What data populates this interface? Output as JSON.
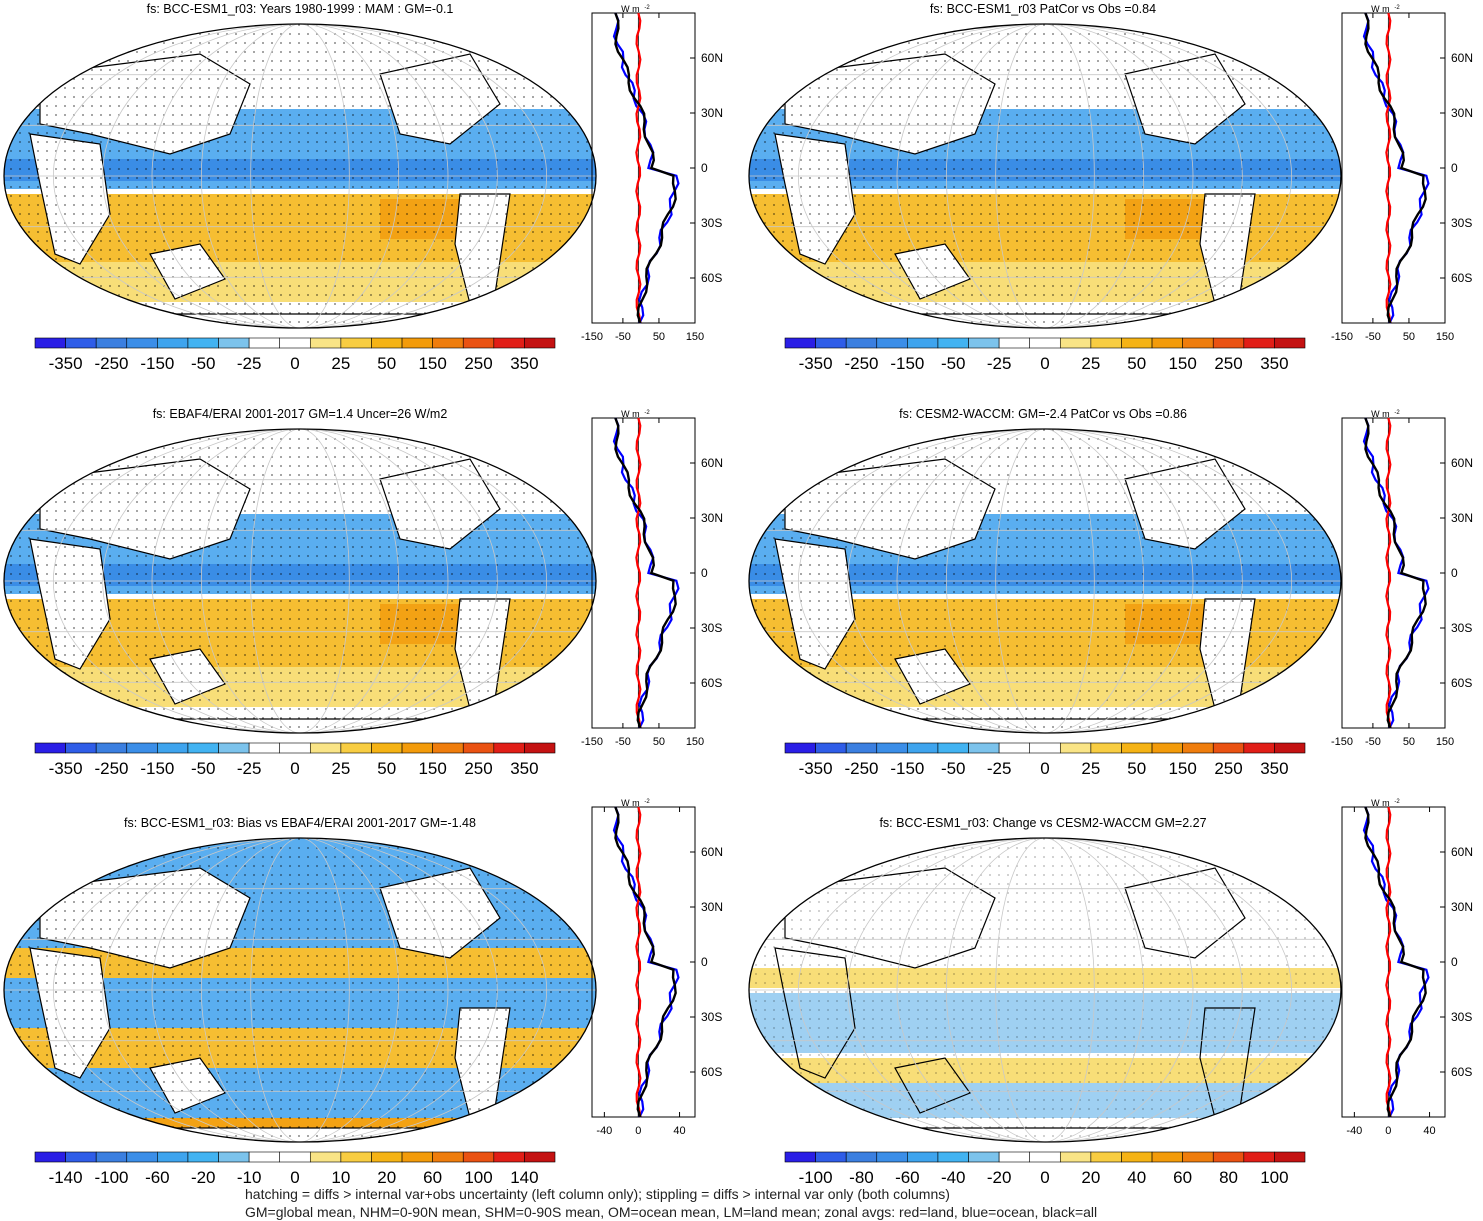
{
  "cbar_colors": [
    "#2a1ee6",
    "#2f5de8",
    "#3b7fe0",
    "#3b8ee8",
    "#3ea4ee",
    "#42b3f2",
    "#7cc3ec",
    "#ffffff",
    "#ffffff",
    "#f9e486",
    "#f8cd42",
    "#f5b315",
    "#f39b0a",
    "#ef7d0d",
    "#ea5212",
    "#e11e17",
    "#c41212"
  ],
  "map_palette": {
    "blue_strong": "#3a8de6",
    "blue_mid": "#5aaef0",
    "blue_light": "#9fd0f2",
    "orange_strong": "#f3a214",
    "orange_mid": "#f6be32",
    "yellow": "#f8de78",
    "white": "#ffffff"
  },
  "profile_colors": {
    "land": "#ff0000",
    "ocean": "#0000ff",
    "all": "#000000"
  },
  "profile_unit": "W m",
  "profile_unit_exp": "-2",
  "lat_labels": [
    "60N",
    "30N",
    "0",
    "30S",
    "60S"
  ],
  "panels": [
    {
      "id": "p1",
      "title": "fs: BCC-ESM1_r03: Years 1980-1999 : MAM : GM=-0.1",
      "cbar_labels": [
        "-350",
        "-250",
        "-150",
        "-50",
        "-25",
        "0",
        "25",
        "50",
        "150",
        "250",
        "350"
      ],
      "profile_ticks": [
        "-150",
        "-50",
        "50",
        "150"
      ],
      "pattern": "a"
    },
    {
      "id": "p2",
      "title": "fs: BCC-ESM1_r03 PatCor vs Obs =0.84",
      "cbar_labels": [
        "-350",
        "-250",
        "-150",
        "-50",
        "-25",
        "0",
        "25",
        "50",
        "150",
        "250",
        "350"
      ],
      "profile_ticks": [
        "-150",
        "-50",
        "50",
        "150"
      ],
      "pattern": "a"
    },
    {
      "id": "p3",
      "title": "fs: EBAF4/ERAI 2001-2017 GM=1.4 Uncer=26 W/m2",
      "cbar_labels": [
        "-350",
        "-250",
        "-150",
        "-50",
        "-25",
        "0",
        "25",
        "50",
        "150",
        "250",
        "350"
      ],
      "profile_ticks": [
        "-150",
        "-50",
        "50",
        "150"
      ],
      "pattern": "a"
    },
    {
      "id": "p4",
      "title": "fs: CESM2-WACCM: GM=-2.4 PatCor vs Obs =0.86",
      "cbar_labels": [
        "-350",
        "-250",
        "-150",
        "-50",
        "-25",
        "0",
        "25",
        "50",
        "150",
        "250",
        "350"
      ],
      "profile_ticks": [
        "-150",
        "-50",
        "50",
        "150"
      ],
      "pattern": "a"
    },
    {
      "id": "p5",
      "title": "fs: BCC-ESM1_r03: Bias vs EBAF4/ERAI 2001-2017 GM=-1.48",
      "cbar_labels": [
        "-140",
        "-100",
        "-60",
        "-20",
        "-10",
        "0",
        "10",
        "20",
        "60",
        "100",
        "140"
      ],
      "profile_ticks": [
        "-40",
        "0",
        "40"
      ],
      "pattern": "b"
    },
    {
      "id": "p6",
      "title": "fs: BCC-ESM1_r03: Change vs CESM2-WACCM GM=2.27",
      "cbar_labels": [
        "-100",
        "-80",
        "-60",
        "-40",
        "-20",
        "0",
        "20",
        "40",
        "60",
        "80",
        "100"
      ],
      "profile_ticks": [
        "-40",
        "0",
        "40"
      ],
      "pattern": "c"
    }
  ],
  "footnote": {
    "line1": "hatching = diffs > internal var+obs uncertainty (left column only); stippling = diffs > internal var only (both columns)",
    "line2": "GM=global mean, NHM=0-90N mean, SHM=0-90S mean, OM=ocean mean, LM=land mean; zonal avgs: red=land, blue=ocean, black=all"
  }
}
